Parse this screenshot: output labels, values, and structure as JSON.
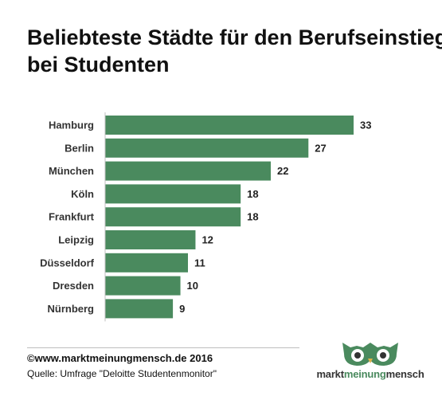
{
  "chart_data": {
    "type": "bar",
    "orientation": "horizontal",
    "title_lines": [
      "Beliebteste Städte für den Berufseinstieg",
      "bei Studenten"
    ],
    "categories": [
      "Hamburg",
      "Berlin",
      "München",
      "Köln",
      "Frankfurt",
      "Leipzig",
      "Düsseldorf",
      "Dresden",
      "Nürnberg"
    ],
    "values": [
      33,
      27,
      22,
      18,
      18,
      12,
      11,
      10,
      9
    ],
    "bar_color": "#4a8a5e",
    "grid": false,
    "legend": "none"
  },
  "footer": {
    "copyright": "©www.marktmeinungmensch.de  2016",
    "source": "Quelle: Umfrage \"Deloitte Studentenmonitor\""
  },
  "logo": {
    "part1": "markt",
    "part2": "meinung",
    "part3": "mensch",
    "icon": "owl-icon",
    "color": "#4a8a5e"
  }
}
